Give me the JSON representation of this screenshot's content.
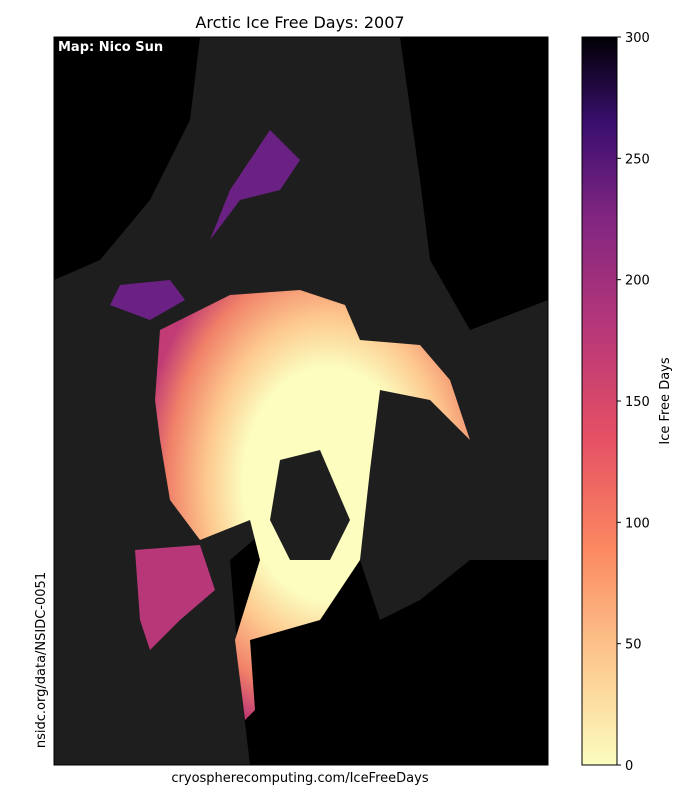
{
  "title": "Arctic Ice Free Days: 2007",
  "credit": "Map: Nico Sun",
  "source": "nsidc.org/data/NSIDC-0051",
  "website": "cryospherecomputing.com/IceFreeDays",
  "colorbar": {
    "label": "Ice Free Days",
    "lim": [
      0,
      300
    ],
    "ticks": [
      0,
      50,
      100,
      150,
      200,
      250,
      300
    ]
  }
}
